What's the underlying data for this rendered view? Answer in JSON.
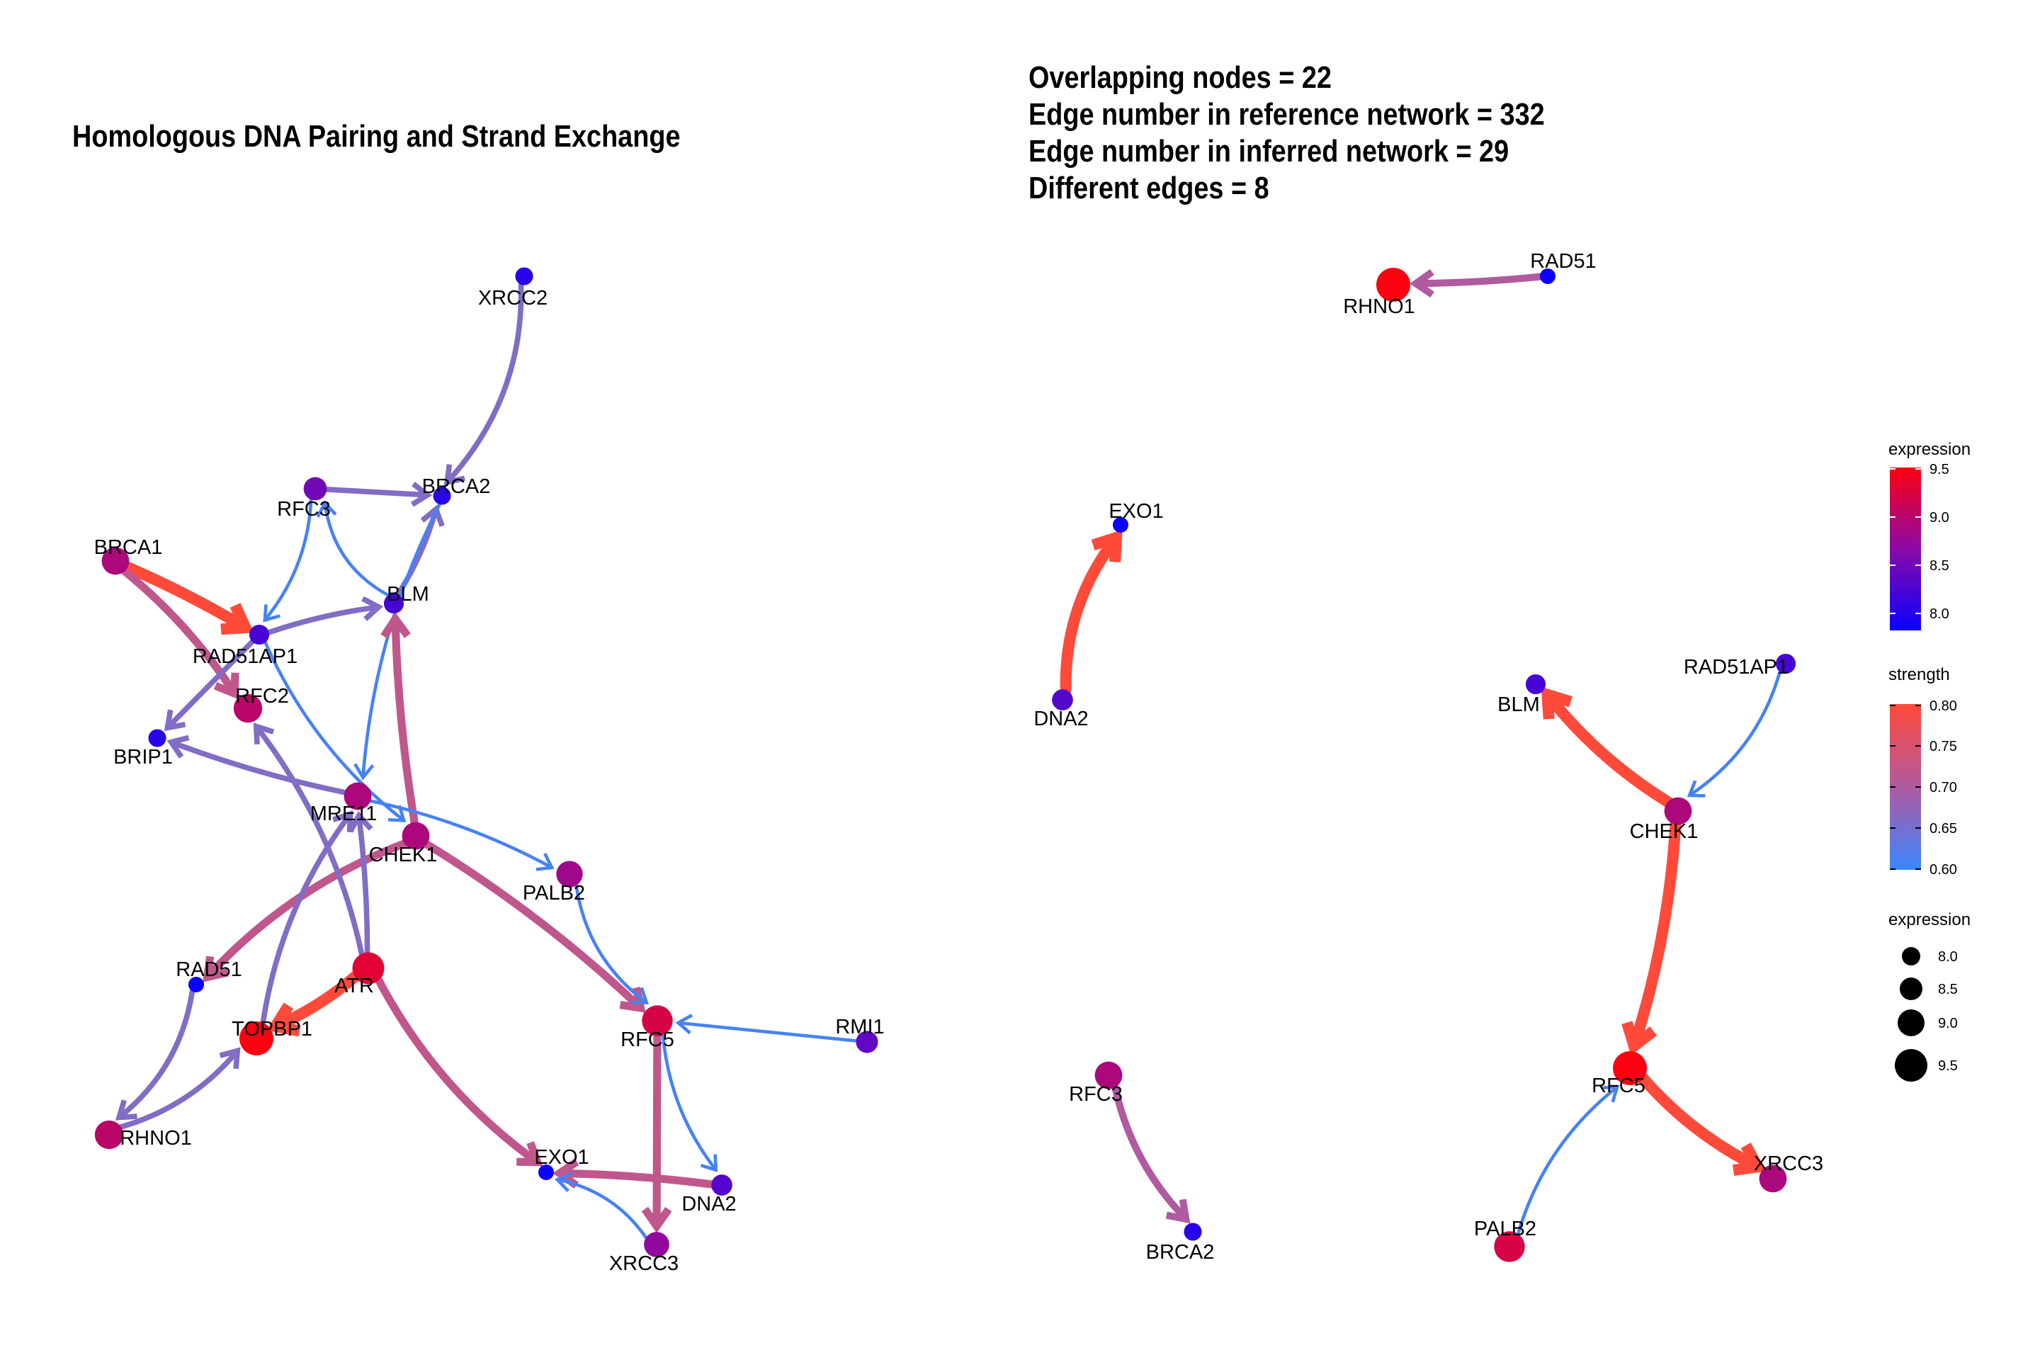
{
  "left_panel": {
    "title": "Homologous DNA Pairing and Strand Exchange",
    "nodes": [
      {
        "id": "XRCC2",
        "label": "XRCC2",
        "expression": 8.0
      },
      {
        "id": "BRCA2",
        "label": "BRCA2",
        "expression": 8.0
      },
      {
        "id": "RFC3",
        "label": "RFC3",
        "expression": 8.5
      },
      {
        "id": "BRCA1",
        "label": "BRCA1",
        "expression": 8.9
      },
      {
        "id": "BLM",
        "label": "BLM",
        "expression": 8.2
      },
      {
        "id": "RAD51AP1",
        "label": "RAD51AP1",
        "expression": 8.2
      },
      {
        "id": "RFC2",
        "label": "RFC2",
        "expression": 9.0
      },
      {
        "id": "BRIP1",
        "label": "BRIP1",
        "expression": 8.0
      },
      {
        "id": "MRE11",
        "label": "MRE11",
        "expression": 8.9
      },
      {
        "id": "CHEK1",
        "label": "CHEK1",
        "expression": 8.9
      },
      {
        "id": "PALB2",
        "label": "PALB2",
        "expression": 8.8
      },
      {
        "id": "RAD51",
        "label": "RAD51",
        "expression": 7.8
      },
      {
        "id": "ATR",
        "label": "ATR",
        "expression": 9.3
      },
      {
        "id": "TOPBP1",
        "label": "TOPBP1",
        "expression": 9.5
      },
      {
        "id": "RFC5",
        "label": "RFC5",
        "expression": 9.2
      },
      {
        "id": "RMI1",
        "label": "RMI1",
        "expression": 8.4
      },
      {
        "id": "RHNO1",
        "label": "RHNO1",
        "expression": 9.0
      },
      {
        "id": "EXO1",
        "label": "EXO1",
        "expression": 7.8
      },
      {
        "id": "DNA2",
        "label": "DNA2",
        "expression": 8.3
      },
      {
        "id": "XRCC3",
        "label": "XRCC3",
        "expression": 8.7
      }
    ],
    "edges": [
      {
        "from": "XRCC2",
        "to": "BRCA2",
        "strength": 0.66
      },
      {
        "from": "RFC3",
        "to": "BRCA2",
        "strength": 0.66
      },
      {
        "from": "BRCA1",
        "to": "RAD51AP1",
        "strength": 0.8
      },
      {
        "from": "BRCA1",
        "to": "RFC2",
        "strength": 0.72
      },
      {
        "from": "RAD51AP1",
        "to": "BLM",
        "strength": 0.66
      },
      {
        "from": "BLM",
        "to": "RFC3",
        "strength": 0.61
      },
      {
        "from": "RFC3",
        "to": "RAD51AP1",
        "strength": 0.61
      },
      {
        "from": "BLM",
        "to": "BRCA2",
        "strength": 0.66
      },
      {
        "from": "BRCA2",
        "to": "MRE11",
        "strength": 0.61
      },
      {
        "from": "RAD51AP1",
        "to": "CHEK1",
        "strength": 0.61
      },
      {
        "from": "RAD51AP1",
        "to": "BRIP1",
        "strength": 0.66
      },
      {
        "from": "CHEK1",
        "to": "BLM",
        "strength": 0.72
      },
      {
        "from": "MRE11",
        "to": "BRIP1",
        "strength": 0.66
      },
      {
        "from": "MRE11",
        "to": "PALB2",
        "strength": 0.61
      },
      {
        "from": "CHEK1",
        "to": "RAD51",
        "strength": 0.72
      },
      {
        "from": "CHEK1",
        "to": "RFC5",
        "strength": 0.72
      },
      {
        "from": "ATR",
        "to": "RFC2",
        "strength": 0.66
      },
      {
        "from": "ATR",
        "to": "MRE11",
        "strength": 0.66
      },
      {
        "from": "TOPBP1",
        "to": "MRE11",
        "strength": 0.66
      },
      {
        "from": "ATR",
        "to": "TOPBP1",
        "strength": 0.8
      },
      {
        "from": "ATR",
        "to": "EXO1",
        "strength": 0.72
      },
      {
        "from": "PALB2",
        "to": "RFC5",
        "strength": 0.61
      },
      {
        "from": "RMI1",
        "to": "RFC5",
        "strength": 0.61
      },
      {
        "from": "RAD51",
        "to": "RHNO1",
        "strength": 0.66
      },
      {
        "from": "RHNO1",
        "to": "TOPBP1",
        "strength": 0.66
      },
      {
        "from": "RFC5",
        "to": "DNA2",
        "strength": 0.61
      },
      {
        "from": "RFC5",
        "to": "XRCC3",
        "strength": 0.72
      },
      {
        "from": "DNA2",
        "to": "EXO1",
        "strength": 0.72
      },
      {
        "from": "XRCC3",
        "to": "EXO1",
        "strength": 0.61
      }
    ]
  },
  "right_panel": {
    "stats": [
      "Overlapping nodes = 22",
      "Edge number in reference network = 332",
      "Edge number in inferred network = 29",
      "Different edges = 8"
    ],
    "nodes": [
      {
        "id": "RAD51",
        "label": "RAD51",
        "expression": 7.8
      },
      {
        "id": "RHNO1",
        "label": "RHNO1",
        "expression": 9.5
      },
      {
        "id": "EXO1",
        "label": "EXO1",
        "expression": 7.8
      },
      {
        "id": "DNA2",
        "label": "DNA2",
        "expression": 8.3
      },
      {
        "id": "BLM",
        "label": "BLM",
        "expression": 8.2
      },
      {
        "id": "RAD51AP1",
        "label": "RAD51AP1",
        "expression": 8.2
      },
      {
        "id": "CHEK1",
        "label": "CHEK1",
        "expression": 8.9
      },
      {
        "id": "RFC5",
        "label": "RFC5",
        "expression": 9.5
      },
      {
        "id": "RFC3",
        "label": "RFC3",
        "expression": 8.9
      },
      {
        "id": "BRCA2",
        "label": "BRCA2",
        "expression": 8.0
      },
      {
        "id": "XRCC3",
        "label": "XRCC3",
        "expression": 8.9
      },
      {
        "id": "PALB2",
        "label": "PALB2",
        "expression": 9.2
      }
    ],
    "edges": [
      {
        "from": "RAD51",
        "to": "RHNO1",
        "strength": 0.7
      },
      {
        "from": "DNA2",
        "to": "EXO1",
        "strength": 0.8
      },
      {
        "from": "CHEK1",
        "to": "BLM",
        "strength": 0.8
      },
      {
        "from": "RAD51AP1",
        "to": "CHEK1",
        "strength": 0.61
      },
      {
        "from": "CHEK1",
        "to": "RFC5",
        "strength": 0.8
      },
      {
        "from": "RFC3",
        "to": "BRCA2",
        "strength": 0.7
      },
      {
        "from": "RFC5",
        "to": "XRCC3",
        "strength": 0.8
      },
      {
        "from": "PALB2",
        "to": "RFC5",
        "strength": 0.61
      }
    ]
  },
  "legend": {
    "expression_color": {
      "title": "expression",
      "ticks": [
        "9.5",
        "9.0",
        "8.5",
        "8.0"
      ]
    },
    "strength": {
      "title": "strength",
      "ticks": [
        "0.80",
        "0.75",
        "0.70",
        "0.65",
        "0.60"
      ]
    },
    "expression_size": {
      "title": "expression",
      "ticks": [
        "8.0",
        "8.5",
        "9.0",
        "9.5"
      ]
    }
  },
  "colors": {
    "expression_low": "#0a00ff",
    "expression_mid": "#8a0aa8",
    "expression_high": "#ff0010",
    "strength_low": "#3a86ff",
    "strength_mid": "#b05aa0",
    "strength_high": "#ff4a3a"
  }
}
